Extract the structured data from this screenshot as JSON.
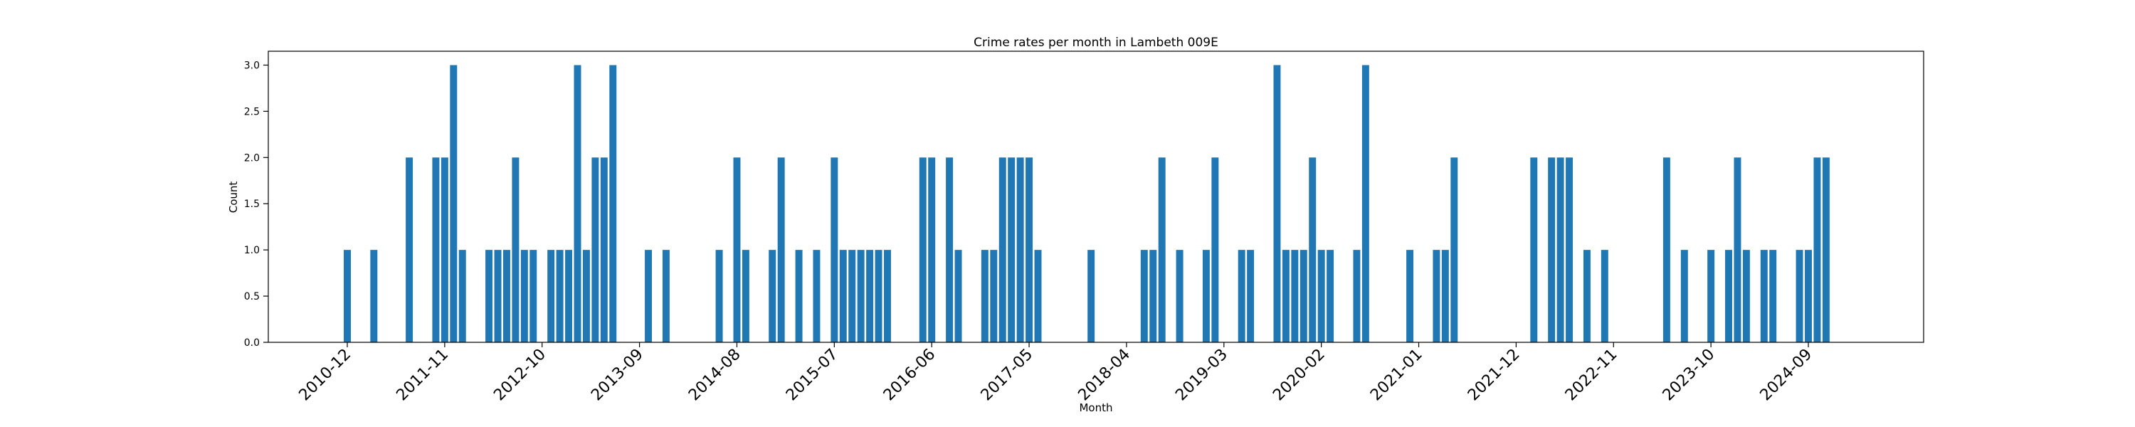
{
  "chart_data": {
    "type": "bar",
    "title": "Crime rates per month in Lambeth 009E",
    "xlabel": "Month",
    "ylabel": "Count",
    "ylim": [
      0,
      3.15
    ],
    "yticks": [
      "0.0",
      "0.5",
      "1.0",
      "1.5",
      "2.0",
      "2.5",
      "3.0"
    ],
    "xticks": [
      "2010-12",
      "2011-11",
      "2012-10",
      "2013-09",
      "2014-08",
      "2015-07",
      "2016-06",
      "2017-05",
      "2018-04",
      "2019-03",
      "2020-02",
      "2021-01",
      "2021-12",
      "2022-11",
      "2023-10",
      "2024-09"
    ],
    "grid": false,
    "color": "#1f77b4",
    "x": [
      "2010-12",
      "2011-03",
      "2011-07",
      "2011-10",
      "2011-11",
      "2011-12",
      "2012-01",
      "2012-04",
      "2012-05",
      "2012-06",
      "2012-07",
      "2012-08",
      "2012-09",
      "2012-11",
      "2012-12",
      "2013-01",
      "2013-02",
      "2013-03",
      "2013-04",
      "2013-05",
      "2013-06",
      "2013-10",
      "2013-12",
      "2014-06",
      "2014-08",
      "2014-09",
      "2014-12",
      "2015-01",
      "2015-03",
      "2015-05",
      "2015-07",
      "2015-08",
      "2015-09",
      "2015-10",
      "2015-11",
      "2015-12",
      "2016-01",
      "2016-05",
      "2016-06",
      "2016-08",
      "2016-09",
      "2016-12",
      "2017-01",
      "2017-02",
      "2017-03",
      "2017-04",
      "2017-05",
      "2017-06",
      "2017-12",
      "2018-06",
      "2018-07",
      "2018-08",
      "2018-10",
      "2019-01",
      "2019-02",
      "2019-05",
      "2019-06",
      "2019-09",
      "2019-10",
      "2019-11",
      "2019-12",
      "2020-01",
      "2020-02",
      "2020-03",
      "2020-06",
      "2020-07",
      "2020-12",
      "2021-03",
      "2021-04",
      "2021-05",
      "2022-02",
      "2022-04",
      "2022-05",
      "2022-06",
      "2022-08",
      "2022-10",
      "2023-05",
      "2023-07",
      "2023-10",
      "2023-12",
      "2024-01",
      "2024-02",
      "2024-04",
      "2024-05",
      "2024-08",
      "2024-09",
      "2024-10",
      "2024-11"
    ],
    "values": [
      1,
      1,
      2,
      2,
      2,
      3,
      1,
      1,
      1,
      1,
      2,
      1,
      1,
      1,
      1,
      1,
      3,
      1,
      2,
      2,
      3,
      1,
      1,
      1,
      2,
      1,
      1,
      2,
      1,
      1,
      2,
      1,
      1,
      1,
      1,
      1,
      1,
      2,
      2,
      2,
      1,
      1,
      1,
      2,
      2,
      2,
      2,
      1,
      1,
      1,
      1,
      2,
      1,
      1,
      2,
      1,
      1,
      3,
      1,
      1,
      1,
      2,
      1,
      1,
      1,
      3,
      1,
      1,
      1,
      2,
      2,
      2,
      2,
      2,
      1,
      1,
      2,
      1,
      1,
      1,
      2,
      1,
      1,
      1,
      1,
      1,
      2,
      2
    ]
  }
}
